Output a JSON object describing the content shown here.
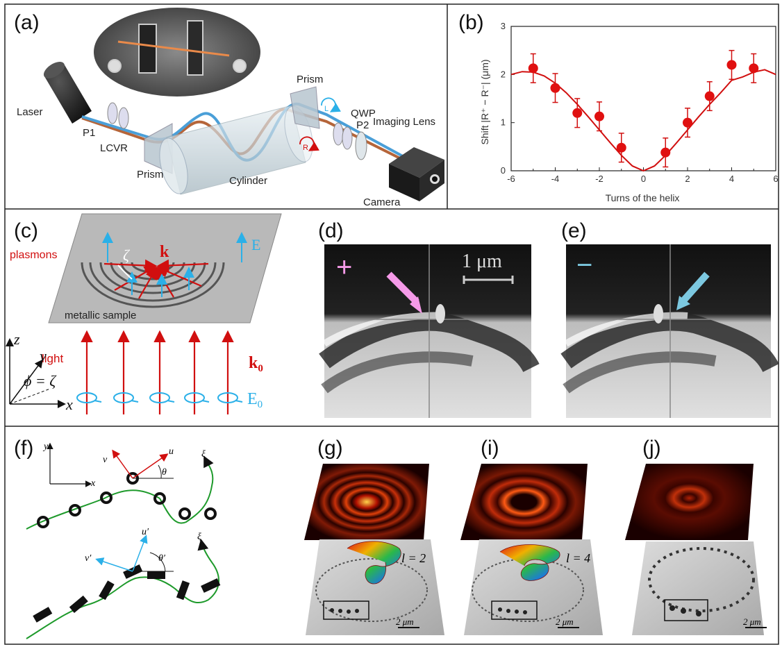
{
  "panels": {
    "a": "(a)",
    "b": "(b)",
    "c": "(c)",
    "d": "(d)",
    "e": "(e)",
    "f": "(f)",
    "g": "(g)",
    "i": "(i)",
    "j": "(j)"
  },
  "setup_labels": {
    "laser": "Laser",
    "p1": "P1",
    "lcvr": "LCVR",
    "prism_left": "Prism",
    "cylinder": "Cylinder",
    "prism_right": "Prism",
    "qwp": "QWP",
    "p2": "P2",
    "imaging_lens": "Imaging Lens",
    "camera": "Camera",
    "circ_l": "L",
    "circ_r": "R"
  },
  "plasmon_labels": {
    "plasmons": "plasmons",
    "k": "k",
    "E": "E",
    "zeta": "ζ",
    "metallic_sample": "metallic sample",
    "light": "light",
    "k0": "k",
    "k0_sub": "0",
    "E0": "E",
    "E0_sub": "0",
    "z": "z",
    "y": "y",
    "x": "x",
    "phi_eq": "ϕ = ζ"
  },
  "micro_labels": {
    "plus": "+",
    "minus": "−",
    "scalebar": "1 μm"
  },
  "chain_labels": {
    "y": "y",
    "x": "x",
    "v": "v",
    "u": "u",
    "theta": "θ",
    "xi": "ξ",
    "u_prime": "u′",
    "v_prime": "v′",
    "theta_prime": "θ′",
    "xi2": "ξ"
  },
  "bottom_labels": {
    "l2": "l = 2",
    "l4": "l = 4",
    "scale_g": "2 μm",
    "scale_i": "2 μm",
    "scale_j": "2 μm"
  },
  "colors": {
    "red": "#d10f0f",
    "cyan": "#2bb0e8",
    "green": "#1e9a2b",
    "pink": "#f59ae8",
    "lightblue": "#7cc8e0"
  },
  "chart_data": {
    "type": "scatter",
    "title": "",
    "xlabel": "Turns of the helix",
    "ylabel": "Shift |R⁺ − R⁻| (μm)",
    "xlim": [
      -6,
      6
    ],
    "ylim": [
      0,
      3
    ],
    "xticks": [
      "-6",
      "-4",
      "-2",
      "0",
      "2",
      "4",
      "6"
    ],
    "yticks": [
      "0",
      "1",
      "2",
      "3"
    ],
    "series": [
      {
        "kind": "points_with_errorbars",
        "x": [
          -5,
          -4,
          -3,
          -2,
          -1,
          1,
          2,
          3,
          4,
          5
        ],
        "y": [
          2.13,
          1.72,
          1.2,
          1.13,
          0.48,
          0.38,
          1.0,
          1.55,
          2.2,
          2.13
        ],
        "err": [
          0.3,
          0.3,
          0.3,
          0.3,
          0.3,
          0.3,
          0.3,
          0.3,
          0.3,
          0.3
        ]
      },
      {
        "kind": "curve",
        "x": [
          -6,
          -5.5,
          -5,
          -4.5,
          -4,
          -3.5,
          -3,
          -2.5,
          -2,
          -1.5,
          -1,
          -0.5,
          0,
          0.5,
          1,
          1.5,
          2,
          2.5,
          3,
          3.5,
          4,
          4.5,
          5,
          5.5,
          6
        ],
        "y": [
          2.0,
          2.06,
          2.05,
          1.97,
          1.82,
          1.62,
          1.38,
          1.12,
          0.85,
          0.58,
          0.32,
          0.1,
          0.0,
          0.1,
          0.32,
          0.58,
          0.85,
          1.12,
          1.38,
          1.62,
          1.88,
          1.95,
          2.05,
          2.1,
          2.0
        ]
      }
    ]
  }
}
